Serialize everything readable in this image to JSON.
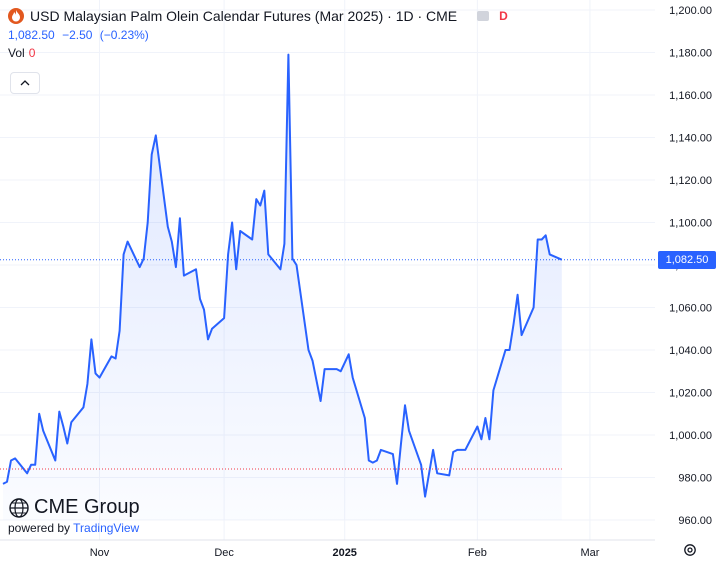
{
  "legend": {
    "title": "USD Malaysian Palm Olein Calendar Futures (Mar 2025) · 1D · CME",
    "market_status": "D",
    "last": "1,082.50",
    "change": "−2.50",
    "change_pct": "(−0.23%)",
    "vol_label": "Vol",
    "vol_value": "0"
  },
  "current_price_label": "1,082.50",
  "branding": {
    "name": "CME Group",
    "powered_prefix": "powered by",
    "powered_brand": "TradingView"
  },
  "colors": {
    "line": "#2962ff",
    "price_tag": "#2962ff",
    "reference_line": "#f23645",
    "logo": "#e2581f"
  },
  "chart_data": {
    "type": "area",
    "x_ticks": [
      "Nov",
      "Dec",
      "2025",
      "Feb",
      "Mar"
    ],
    "y_ticks": [
      "1,200.00",
      "1,180.00",
      "1,160.00",
      "1,140.00",
      "1,120.00",
      "1,100.00",
      "1,080.00",
      "1,060.00",
      "1,040.00",
      "1,020.00",
      "1,000.00",
      "980.00",
      "960.00"
    ],
    "ylim": [
      960,
      1200
    ],
    "last_price": 1082.5,
    "reference_level": 984,
    "grid": true,
    "x_dates": [
      "2024-10-08",
      "2024-10-09",
      "2024-10-10",
      "2024-10-11",
      "2024-10-14",
      "2024-10-15",
      "2024-10-16",
      "2024-10-17",
      "2024-10-18",
      "2024-10-21",
      "2024-10-22",
      "2024-10-23",
      "2024-10-24",
      "2024-10-25",
      "2024-10-28",
      "2024-10-29",
      "2024-10-30",
      "2024-10-31",
      "2024-11-01",
      "2024-11-04",
      "2024-11-05",
      "2024-11-06",
      "2024-11-07",
      "2024-11-08",
      "2024-11-11",
      "2024-11-12",
      "2024-11-13",
      "2024-11-14",
      "2024-11-15",
      "2024-11-18",
      "2024-11-19",
      "2024-11-20",
      "2024-11-21",
      "2024-11-22",
      "2024-11-25",
      "2024-11-26",
      "2024-11-27",
      "2024-11-28",
      "2024-11-29",
      "2024-12-02",
      "2024-12-03",
      "2024-12-04",
      "2024-12-05",
      "2024-12-06",
      "2024-12-09",
      "2024-12-10",
      "2024-12-11",
      "2024-12-12",
      "2024-12-13",
      "2024-12-16",
      "2024-12-17",
      "2024-12-18",
      "2024-12-19",
      "2024-12-20",
      "2024-12-23",
      "2024-12-24",
      "2024-12-26",
      "2024-12-27",
      "2024-12-30",
      "2024-12-31",
      "2025-01-02",
      "2025-01-03",
      "2025-01-06",
      "2025-01-07",
      "2025-01-08",
      "2025-01-09",
      "2025-01-10",
      "2025-01-13",
      "2025-01-14",
      "2025-01-15",
      "2025-01-16",
      "2025-01-17",
      "2025-01-20",
      "2025-01-21",
      "2025-01-22",
      "2025-01-23",
      "2025-01-24",
      "2025-01-27",
      "2025-01-28",
      "2025-01-29",
      "2025-01-30",
      "2025-01-31",
      "2025-02-03",
      "2025-02-04",
      "2025-02-05",
      "2025-02-06",
      "2025-02-07",
      "2025-02-10",
      "2025-02-11",
      "2025-02-12",
      "2025-02-13",
      "2025-02-14",
      "2025-02-17",
      "2025-02-18",
      "2025-02-19",
      "2025-02-20",
      "2025-02-21",
      "2025-02-24"
    ],
    "values": [
      977,
      978,
      988,
      989,
      982,
      986,
      986,
      1010,
      1002,
      988,
      1011,
      1004,
      996,
      1006,
      1013,
      1024,
      1045,
      1029,
      1027,
      1037,
      1036,
      1049,
      1085,
      1091,
      1079,
      1083,
      1100,
      1132,
      1141,
      1098,
      1091,
      1079,
      1102,
      1075,
      1078,
      1064,
      1059,
      1045,
      1050,
      1055,
      1085,
      1100,
      1078,
      1096,
      1092,
      1111,
      1108,
      1115,
      1085,
      1078,
      1090,
      1179,
      1083,
      1080,
      1040,
      1035,
      1016,
      1031,
      1031,
      1030,
      1038,
      1027,
      1008,
      988,
      987,
      988,
      993,
      991,
      977,
      996,
      1014,
      1002,
      986,
      971,
      982,
      993,
      982,
      981,
      992,
      993,
      993,
      993,
      1004,
      998,
      1008,
      998,
      1021,
      1040,
      1040,
      1052,
      1066,
      1047,
      1060,
      1092,
      1092,
      1094,
      1085,
      1082.5
    ],
    "xlabel": "",
    "ylabel": ""
  }
}
